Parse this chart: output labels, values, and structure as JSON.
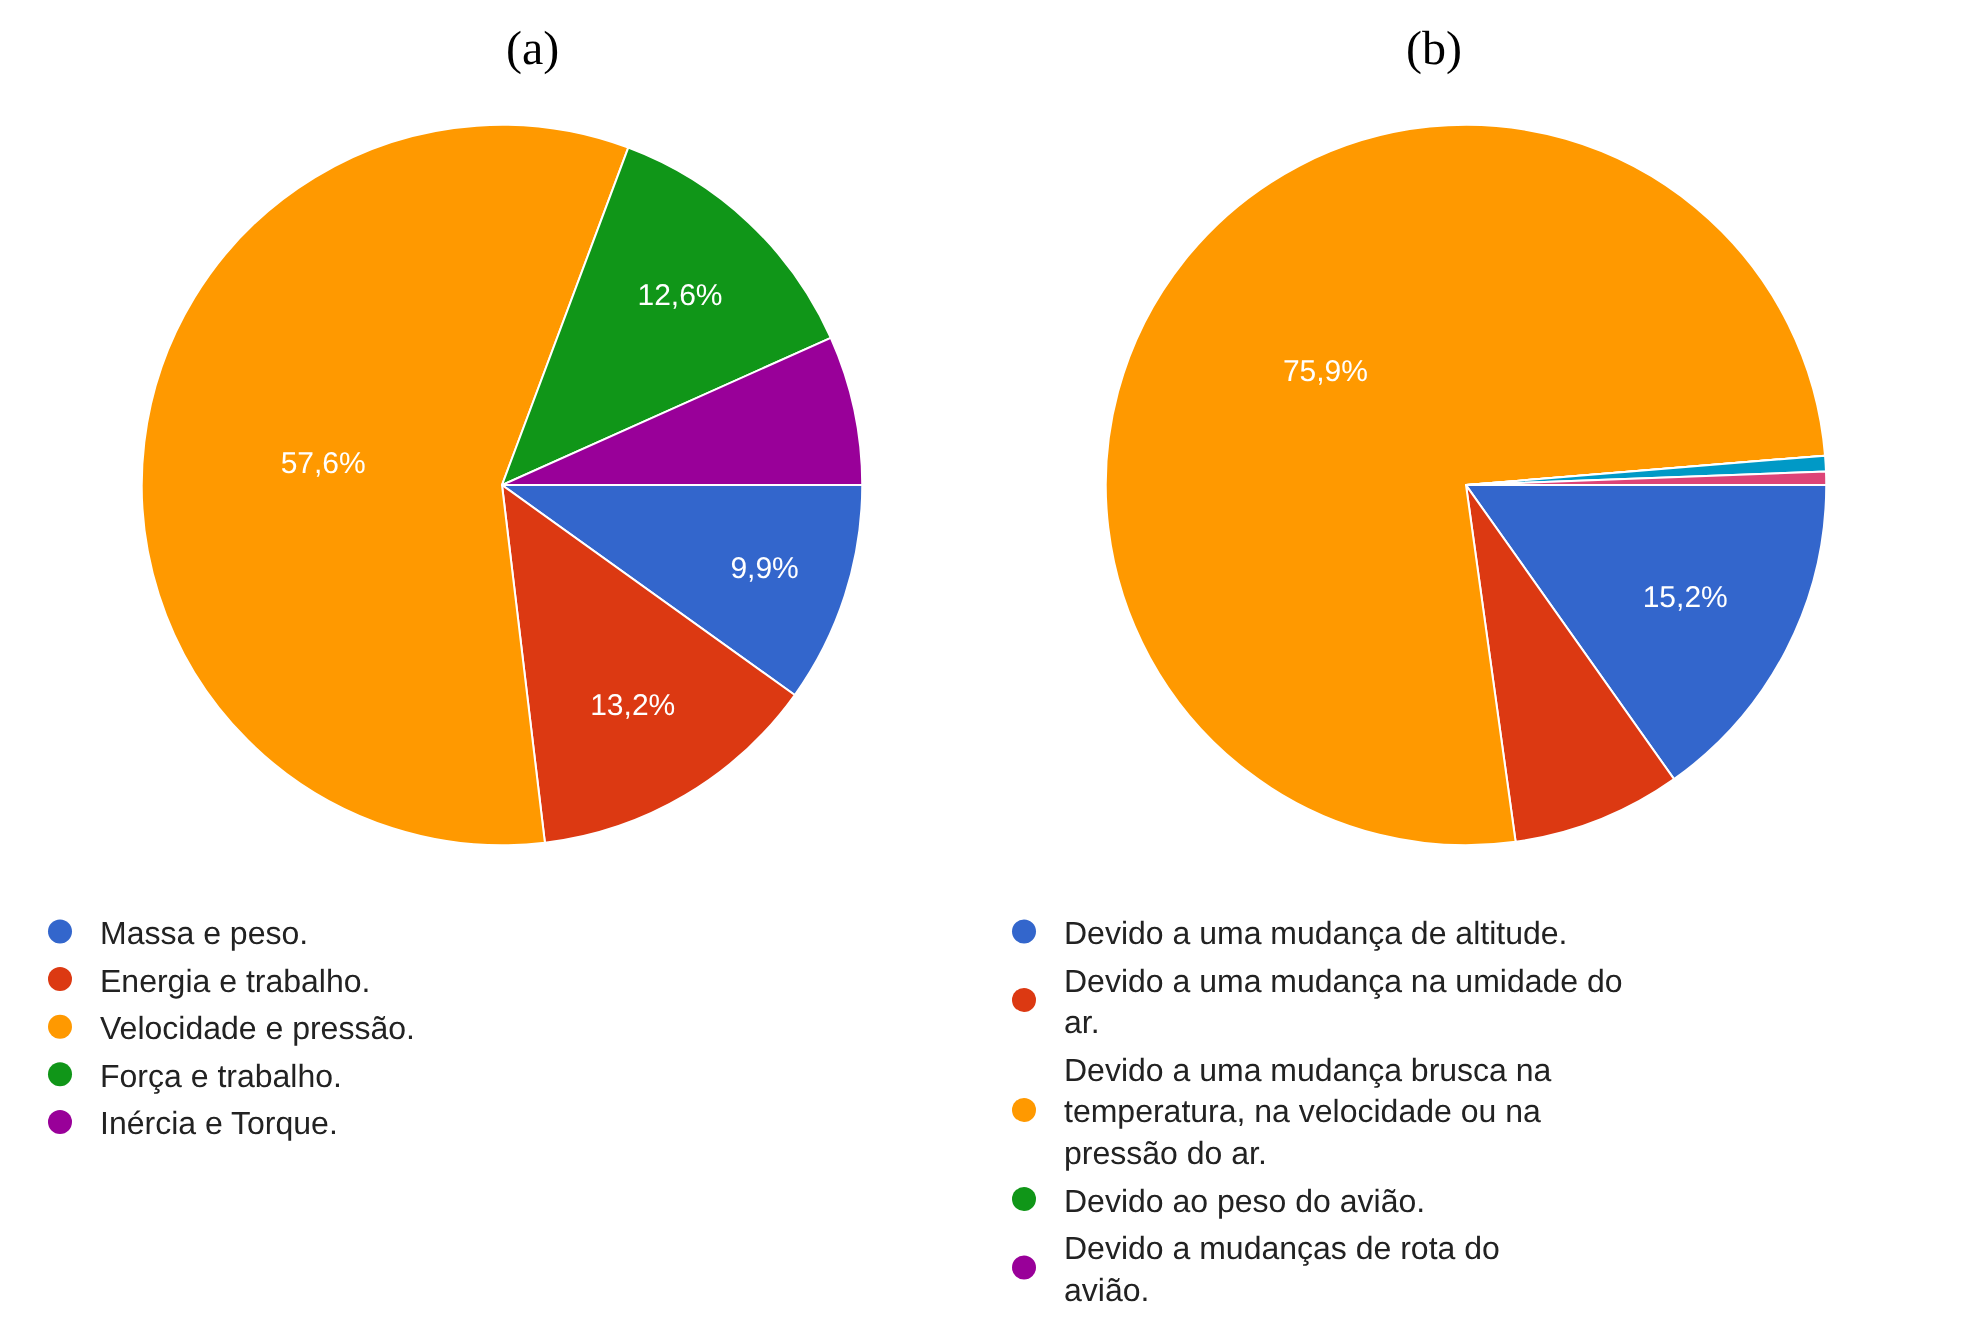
{
  "chart_data": [
    {
      "type": "pie",
      "title": "(a)",
      "categories": [
        "Massa e peso.",
        "Energia e trabalho.",
        "Velocidade e pressão.",
        "Força e trabalho.",
        "Inércia e Torque."
      ],
      "values": [
        9.9,
        13.2,
        57.6,
        12.6,
        6.7
      ],
      "value_labels": [
        "9,9%",
        "13,2%",
        "57,6%",
        "12,6%",
        null
      ],
      "colors": [
        "#3366cc",
        "#dc3912",
        "#ff9900",
        "#109618",
        "#990099"
      ],
      "legend": "bottom"
    },
    {
      "type": "pie",
      "title": "(b)",
      "categories": [
        "Devido a uma mudança de altitude.",
        "Devido a uma mudança na umidade do ar.",
        "Devido a uma mudança brusca na temperatura, na velocidade ou na pressão do ar.",
        "Devido ao peso do avião.",
        "Devido a mudanças de rota do avião.",
        null,
        null
      ],
      "values": [
        15.2,
        7.6,
        75.9,
        0,
        0,
        0.7,
        0.6
      ],
      "value_labels": [
        "15,2%",
        null,
        "75,9%",
        null,
        null,
        null,
        null
      ],
      "colors": [
        "#3366cc",
        "#dc3912",
        "#ff9900",
        "#109618",
        "#990099",
        "#0099c6",
        "#dd4477"
      ],
      "legend": "bottom"
    }
  ]
}
